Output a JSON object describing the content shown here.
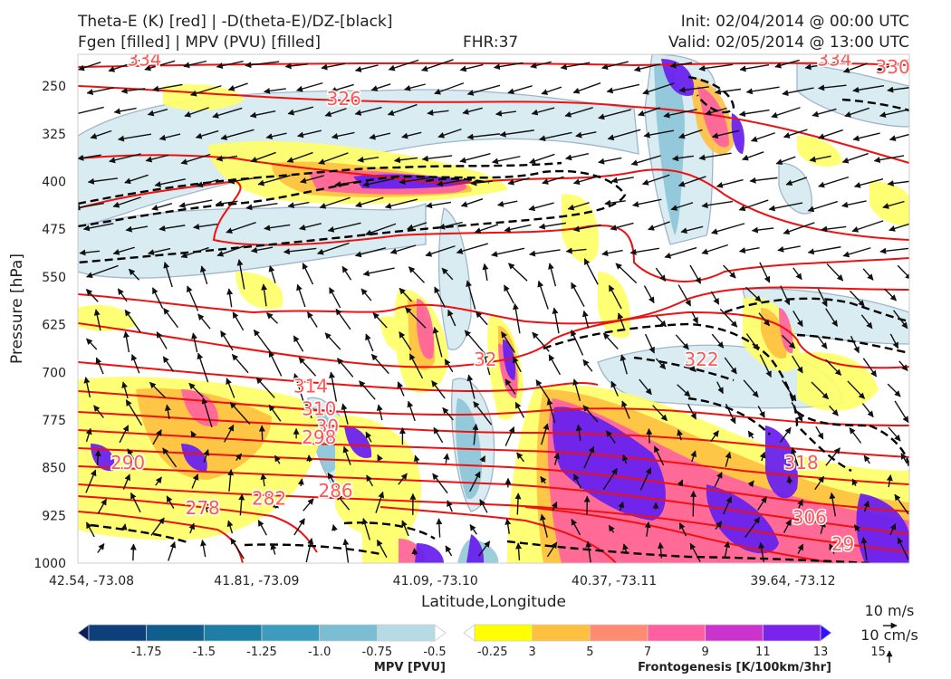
{
  "header": {
    "title_left_1": "Theta-E (K) [red] | -D(theta-E)/DZ-[black]",
    "title_left_2": "Fgen [filled] | MPV (PVU) [filled]",
    "fhr": "FHR:37",
    "init": "Init: 02/04/2014 @ 00:00 UTC",
    "valid": "Valid: 02/05/2014 @ 13:00 UTC"
  },
  "chart_data": {
    "type": "cross-section",
    "ylabel": "Pressure [hPa]",
    "xlabel": "Latitude,Longitude",
    "y_ticks": [
      "250",
      "325",
      "400",
      "475",
      "550",
      "625",
      "700",
      "775",
      "850",
      "925",
      "1000"
    ],
    "x_ticks": [
      "42.54, -73.08",
      "41.81, -73.09",
      "41.09, -73.10",
      "40.37, -73.11",
      "39.64, -73.12"
    ],
    "ylim": [
      1000,
      200
    ],
    "theta_e_contour_labels": [
      {
        "label": "334",
        "x": 0.08,
        "p": 208
      },
      {
        "label": "326",
        "x": 0.32,
        "p": 270
      },
      {
        "label": "334",
        "x": 0.91,
        "p": 208
      },
      {
        "label": "330",
        "x": 0.98,
        "p": 220
      },
      {
        "label": "32",
        "x": 0.49,
        "p": 680
      },
      {
        "label": "322",
        "x": 0.75,
        "p": 680
      },
      {
        "label": "314",
        "x": 0.28,
        "p": 722
      },
      {
        "label": "310",
        "x": 0.29,
        "p": 757
      },
      {
        "label": "30",
        "x": 0.3,
        "p": 785
      },
      {
        "label": "298",
        "x": 0.29,
        "p": 802
      },
      {
        "label": "290",
        "x": 0.06,
        "p": 842
      },
      {
        "label": "286",
        "x": 0.31,
        "p": 886
      },
      {
        "label": "282",
        "x": 0.23,
        "p": 898
      },
      {
        "label": "278",
        "x": 0.15,
        "p": 913
      },
      {
        "label": "318",
        "x": 0.87,
        "p": 842
      },
      {
        "label": "306",
        "x": 0.88,
        "p": 928
      },
      {
        "label": "29",
        "x": 0.92,
        "p": 970
      }
    ],
    "mpv_colorbar": {
      "label": "MPV [PVU]",
      "ticks": [
        "-1.75",
        "-1.5",
        "-1.25",
        "-1.0",
        "-0.75",
        "-0.5",
        "-0.25"
      ],
      "colors": [
        "#0a1f5c",
        "#0d3f7a",
        "#105e8e",
        "#1e7ea5",
        "#3d9bbd",
        "#7bbdd2",
        "#b7dbe5",
        "#ffffff"
      ]
    },
    "fgen_colorbar": {
      "label": "Frontogenesis [K/100km/3hr]",
      "ticks": [
        "3",
        "5",
        "7",
        "9",
        "11",
        "13",
        "15"
      ],
      "colors": [
        "#ffffff",
        "#ffff00",
        "#ffc040",
        "#ff8c70",
        "#ff5fa0",
        "#cc33cc",
        "#7a22ee",
        "#3010ff"
      ]
    },
    "wind_reference": {
      "horizontal": "10 m/s",
      "vertical": "10 cm/s"
    }
  }
}
